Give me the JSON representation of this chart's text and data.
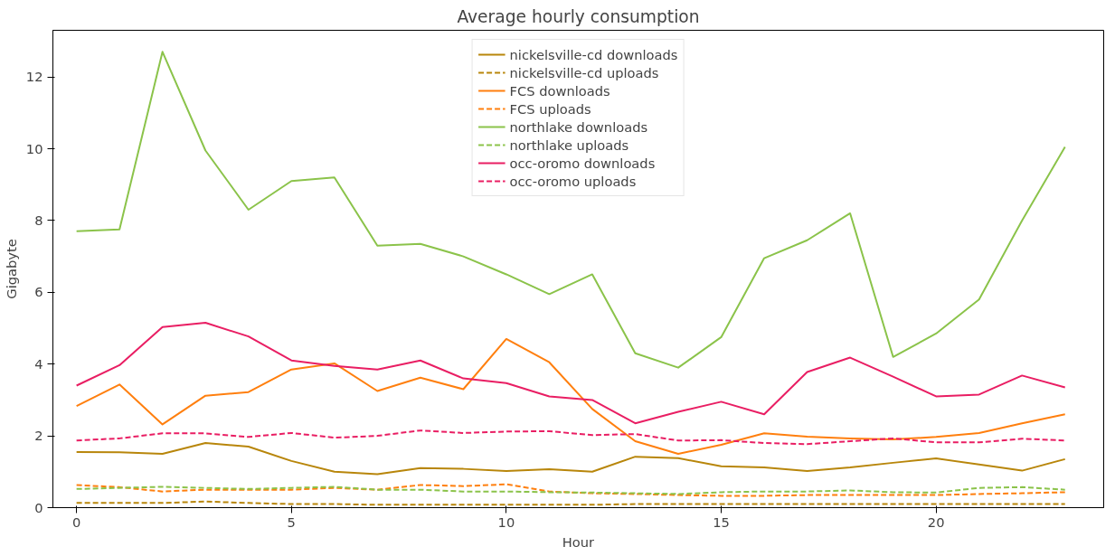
{
  "chart_data": {
    "type": "line",
    "title": "Average hourly consumption",
    "xlabel": "Hour",
    "ylabel": "Gigabyte",
    "x": [
      0,
      1,
      2,
      3,
      4,
      5,
      6,
      7,
      8,
      9,
      10,
      11,
      12,
      13,
      14,
      15,
      16,
      17,
      18,
      19,
      20,
      21,
      22,
      23
    ],
    "xlim": [
      -0.55,
      23.9
    ],
    "xticks": [
      0,
      5,
      10,
      15,
      20
    ],
    "ylim": [
      0,
      13.3
    ],
    "yticks": [
      0,
      2,
      4,
      6,
      8,
      10,
      12
    ],
    "grid": false,
    "legend": "top",
    "marker": "none",
    "series": [
      {
        "name": "nickelsville-cd downloads",
        "color": "#b8860b",
        "line_style": "solid",
        "values": [
          1.55,
          1.54,
          1.5,
          1.8,
          1.7,
          1.3,
          1.0,
          0.93,
          1.1,
          1.08,
          1.02,
          1.07,
          1.0,
          1.42,
          1.38,
          1.15,
          1.12,
          1.02,
          1.12,
          1.25,
          1.37,
          1.2,
          1.03,
          1.35
        ]
      },
      {
        "name": "nickelsville-cd uploads",
        "color": "#b8860b",
        "line_style": "dashed",
        "values": [
          0.13,
          0.13,
          0.13,
          0.17,
          0.13,
          0.1,
          0.1,
          0.08,
          0.08,
          0.08,
          0.08,
          0.08,
          0.08,
          0.1,
          0.1,
          0.1,
          0.1,
          0.1,
          0.1,
          0.1,
          0.1,
          0.1,
          0.1,
          0.1
        ]
      },
      {
        "name": "FCS downloads",
        "color": "#ff7f0e",
        "line_style": "solid",
        "values": [
          2.83,
          3.43,
          2.32,
          3.12,
          3.22,
          3.85,
          4.02,
          3.25,
          3.62,
          3.3,
          4.7,
          4.05,
          2.75,
          1.85,
          1.5,
          1.75,
          2.07,
          1.98,
          1.93,
          1.9,
          1.97,
          2.08,
          2.35,
          2.6
        ]
      },
      {
        "name": "FCS uploads",
        "color": "#ff7f0e",
        "line_style": "dashed",
        "values": [
          0.63,
          0.57,
          0.45,
          0.5,
          0.5,
          0.5,
          0.55,
          0.5,
          0.63,
          0.6,
          0.65,
          0.45,
          0.4,
          0.38,
          0.35,
          0.33,
          0.33,
          0.35,
          0.35,
          0.35,
          0.35,
          0.38,
          0.4,
          0.43
        ]
      },
      {
        "name": "northlake downloads",
        "color": "#8bc34a",
        "line_style": "solid",
        "values": [
          7.7,
          7.75,
          12.7,
          9.95,
          8.3,
          9.1,
          9.2,
          7.3,
          7.35,
          7.0,
          6.5,
          5.95,
          6.5,
          4.3,
          3.9,
          4.75,
          6.95,
          7.45,
          8.2,
          4.2,
          4.85,
          5.8,
          8.0,
          10.05
        ]
      },
      {
        "name": "northlake uploads",
        "color": "#8bc34a",
        "line_style": "dashed",
        "values": [
          0.52,
          0.55,
          0.58,
          0.55,
          0.52,
          0.55,
          0.58,
          0.5,
          0.5,
          0.45,
          0.45,
          0.43,
          0.42,
          0.4,
          0.38,
          0.43,
          0.45,
          0.45,
          0.48,
          0.43,
          0.42,
          0.55,
          0.57,
          0.5
        ]
      },
      {
        "name": "occ-oromo downloads",
        "color": "#e91e63",
        "line_style": "solid",
        "values": [
          3.4,
          3.97,
          5.03,
          5.15,
          4.77,
          4.1,
          3.95,
          3.85,
          4.1,
          3.6,
          3.47,
          3.1,
          3.0,
          2.35,
          2.67,
          2.95,
          2.6,
          3.78,
          4.18,
          3.65,
          3.1,
          3.15,
          3.68,
          3.35
        ]
      },
      {
        "name": "occ-oromo uploads",
        "color": "#e91e63",
        "line_style": "dashed",
        "values": [
          1.87,
          1.93,
          2.07,
          2.07,
          1.97,
          2.08,
          1.95,
          2.0,
          2.15,
          2.08,
          2.12,
          2.13,
          2.02,
          2.05,
          1.87,
          1.88,
          1.8,
          1.77,
          1.85,
          1.93,
          1.82,
          1.82,
          1.92,
          1.87
        ]
      }
    ]
  }
}
